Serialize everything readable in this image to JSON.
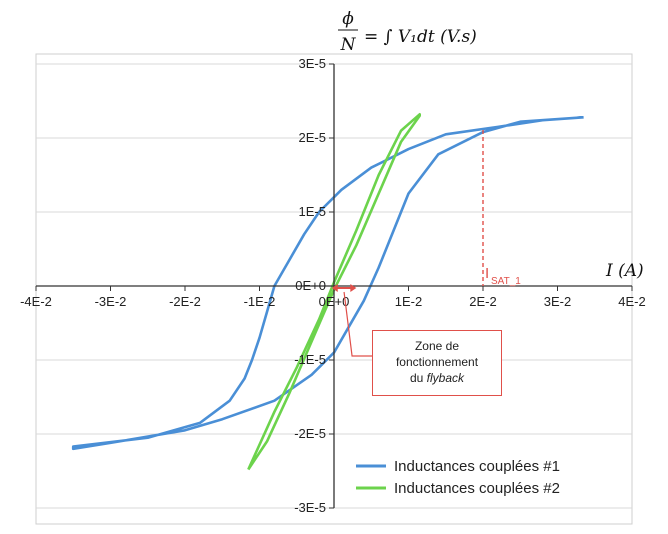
{
  "chart_data": {
    "type": "line",
    "y_axis_title": {
      "numerator": "ϕ",
      "denominator": "N",
      "expression": "= ∫ V₁dt  (V.s)"
    },
    "x_axis_title": "I  (A)",
    "xlim": [
      -0.04,
      0.04
    ],
    "ylim": [
      -3e-05,
      3e-05
    ],
    "x_ticks": [
      -0.04,
      -0.03,
      -0.02,
      -0.01,
      0,
      0.01,
      0.02,
      0.03,
      0.04
    ],
    "x_tick_labels": [
      "-4E-2",
      "-3E-2",
      "-2E-2",
      "-1E-2",
      "0E+0",
      "1E-2",
      "2E-2",
      "3E-2",
      "4E-2"
    ],
    "y_ticks": [
      3e-05,
      2e-05,
      1e-05,
      0,
      -1e-05,
      -2e-05,
      -3e-05
    ],
    "y_tick_labels": [
      "3E-5",
      "2E-5",
      "1E-5",
      "0E+0",
      "-1E-5",
      "-2E-5",
      "-3E-5"
    ],
    "grid": "horizontal",
    "legend_position": "bottom-right",
    "series": [
      {
        "name": "Inductances couplées #1",
        "color": "#4a8fd6",
        "x": [
          0.0335,
          0.028,
          0.022,
          0.015,
          0.01,
          0.005,
          0.001,
          -0.002,
          -0.004,
          -0.006,
          -0.008,
          -0.009,
          -0.01,
          -0.011,
          -0.012,
          -0.014,
          -0.018,
          -0.025,
          -0.035,
          -0.035,
          -0.03,
          -0.02,
          -0.015,
          -0.008,
          -0.003,
          0,
          0.002,
          0.004,
          0.006,
          0.008,
          0.01,
          0.014,
          0.02,
          0.025,
          0.0335
        ],
        "y": [
          2.28e-05,
          2.24e-05,
          2.15e-05,
          2.05e-05,
          1.85e-05,
          1.6e-05,
          1.3e-05,
          1e-05,
          7e-06,
          3.5e-06,
          0,
          -3.5e-06,
          -7e-06,
          -1e-05,
          -1.25e-05,
          -1.55e-05,
          -1.85e-05,
          -2.05e-05,
          -2.17e-05,
          -2.2e-05,
          -2.12e-05,
          -1.95e-05,
          -1.8e-05,
          -1.55e-05,
          -1.2e-05,
          -9e-06,
          -5.5e-06,
          -2e-06,
          2.5e-06,
          7.5e-06,
          1.25e-05,
          1.78e-05,
          2.08e-05,
          2.22e-05,
          2.28e-05
        ]
      },
      {
        "name": "Inductances couplées #2",
        "color": "#6cd34c",
        "x": [
          -0.0115,
          -0.008,
          -0.005,
          -0.002,
          0,
          0.003,
          0.006,
          0.009,
          0.0115,
          0.0115,
          0.009,
          0.006,
          0.003,
          0,
          -0.003,
          -0.006,
          -0.009,
          -0.0115
        ],
        "y": [
          -2.48e-05,
          -1.7e-05,
          -1.1e-05,
          -4.5e-06,
          5e-07,
          7.5e-06,
          1.5e-05,
          2.1e-05,
          2.32e-05,
          2.3e-05,
          1.95e-05,
          1.25e-05,
          5.5e-06,
          -5e-07,
          -7.5e-06,
          -1.45e-05,
          -2.1e-05,
          -2.48e-05
        ]
      }
    ],
    "saturation_marker": {
      "label_main": "I",
      "label_sub": "SAT_1",
      "x": 0.02,
      "y": 2e-05,
      "color": "#e0504a"
    },
    "annotation": {
      "line1": "Zone de",
      "line2": "fonctionnement",
      "line3_prefix": "du ",
      "line3_italic": "flyback",
      "color": "#e0504a",
      "range_x": [
        -0.0003,
        0.003
      ]
    }
  }
}
